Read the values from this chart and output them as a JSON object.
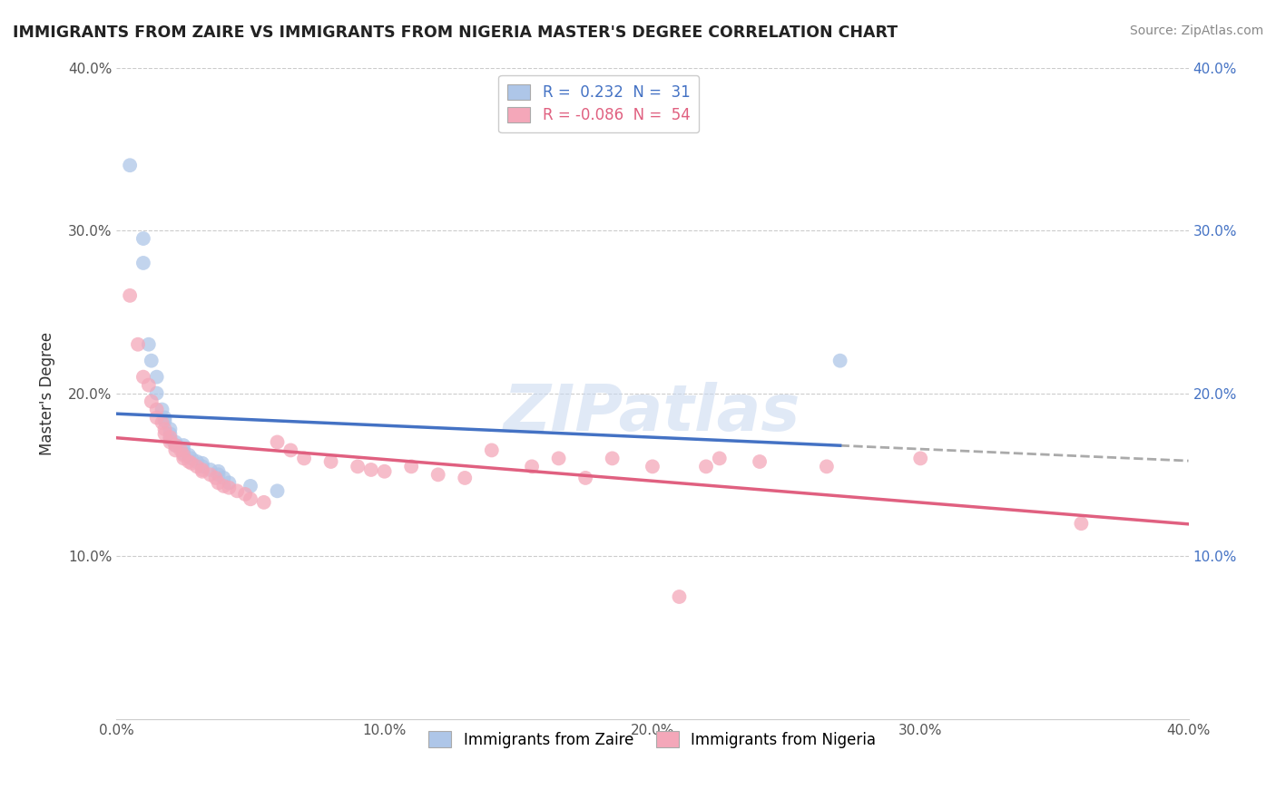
{
  "title": "IMMIGRANTS FROM ZAIRE VS IMMIGRANTS FROM NIGERIA MASTER'S DEGREE CORRELATION CHART",
  "source": "Source: ZipAtlas.com",
  "ylabel": "Master's Degree",
  "xlim": [
    0.0,
    0.4
  ],
  "ylim": [
    0.0,
    0.4
  ],
  "xtick_labels": [
    "0.0%",
    "10.0%",
    "20.0%",
    "30.0%",
    "40.0%"
  ],
  "xtick_vals": [
    0.0,
    0.1,
    0.2,
    0.3,
    0.4
  ],
  "ytick_labels": [
    "10.0%",
    "20.0%",
    "30.0%",
    "40.0%"
  ],
  "ytick_vals": [
    0.1,
    0.2,
    0.3,
    0.4
  ],
  "right_ytick_labels": [
    "10.0%",
    "20.0%",
    "30.0%",
    "40.0%"
  ],
  "right_ytick_vals": [
    0.1,
    0.2,
    0.3,
    0.4
  ],
  "zaire_color": "#aec6e8",
  "nigeria_color": "#f4a7b9",
  "zaire_line_color": "#4472c4",
  "nigeria_line_color": "#e06080",
  "zaire_R": 0.232,
  "zaire_N": 31,
  "nigeria_R": -0.086,
  "nigeria_N": 54,
  "legend_label_zaire": "Immigrants from Zaire",
  "legend_label_nigeria": "Immigrants from Nigeria",
  "watermark": "ZIPatlas",
  "zaire_scatter_x": [
    0.005,
    0.01,
    0.01,
    0.012,
    0.013,
    0.015,
    0.015,
    0.017,
    0.018,
    0.018,
    0.02,
    0.02,
    0.02,
    0.022,
    0.022,
    0.025,
    0.025,
    0.025,
    0.027,
    0.028,
    0.03,
    0.032,
    0.032,
    0.035,
    0.038,
    0.038,
    0.04,
    0.042,
    0.05,
    0.06,
    0.27
  ],
  "zaire_scatter_y": [
    0.34,
    0.295,
    0.28,
    0.23,
    0.22,
    0.21,
    0.2,
    0.19,
    0.185,
    0.183,
    0.178,
    0.175,
    0.172,
    0.17,
    0.168,
    0.168,
    0.165,
    0.163,
    0.162,
    0.16,
    0.158,
    0.157,
    0.155,
    0.153,
    0.152,
    0.15,
    0.148,
    0.145,
    0.143,
    0.14,
    0.22
  ],
  "nigeria_scatter_x": [
    0.005,
    0.008,
    0.01,
    0.012,
    0.013,
    0.015,
    0.015,
    0.017,
    0.018,
    0.018,
    0.02,
    0.02,
    0.022,
    0.022,
    0.024,
    0.025,
    0.025,
    0.027,
    0.028,
    0.03,
    0.032,
    0.032,
    0.035,
    0.037,
    0.038,
    0.04,
    0.042,
    0.045,
    0.048,
    0.05,
    0.055,
    0.06,
    0.065,
    0.07,
    0.08,
    0.09,
    0.095,
    0.1,
    0.11,
    0.12,
    0.13,
    0.14,
    0.155,
    0.165,
    0.175,
    0.185,
    0.2,
    0.21,
    0.22,
    0.225,
    0.24,
    0.265,
    0.3,
    0.36
  ],
  "nigeria_scatter_y": [
    0.26,
    0.23,
    0.21,
    0.205,
    0.195,
    0.19,
    0.185,
    0.182,
    0.178,
    0.175,
    0.173,
    0.17,
    0.168,
    0.165,
    0.165,
    0.162,
    0.16,
    0.158,
    0.157,
    0.155,
    0.153,
    0.152,
    0.15,
    0.148,
    0.145,
    0.143,
    0.142,
    0.14,
    0.138,
    0.135,
    0.133,
    0.17,
    0.165,
    0.16,
    0.158,
    0.155,
    0.153,
    0.152,
    0.155,
    0.15,
    0.148,
    0.165,
    0.155,
    0.16,
    0.148,
    0.16,
    0.155,
    0.075,
    0.155,
    0.16,
    0.158,
    0.155,
    0.16,
    0.12
  ]
}
